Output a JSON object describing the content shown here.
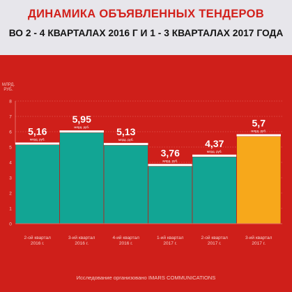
{
  "header": {
    "title_line1": "ДИНАМИКА ОБЪЯВЛЕННЫХ ТЕНДЕРОВ",
    "title_line2": "ВО 2 - 4 КВАРТАЛАХ 2016 Г И 1 - 3 КВАРТАЛАХ 2017 ГОДА"
  },
  "footer": {
    "text": "Исследование организовано IMARS COMMUNICATIONS"
  },
  "colors": {
    "background": "#cf1f1a",
    "header_bg": "#e7e6eb",
    "bar_teal": "#12a594",
    "bar_highlight": "#f7a81b",
    "bar_top_line": "#ffffff"
  },
  "chart_data": {
    "type": "bar",
    "ylabel": "МЛРД. РУБ.",
    "ylim": [
      0,
      8
    ],
    "yticks": [
      "0",
      "1",
      "2",
      "3",
      "4",
      "5",
      "6",
      "7",
      "8"
    ],
    "grid": true,
    "categories": [
      [
        "2-ой квартал",
        "2016 г."
      ],
      [
        "3-ий квартал",
        "2016 г."
      ],
      [
        "4-ий квартал",
        "2016 г."
      ],
      [
        "1-ий квартал",
        "2017 г."
      ],
      [
        "2-ой квартал",
        "2017 г."
      ],
      [
        "3-ий квартал",
        "2017 г."
      ]
    ],
    "values": [
      5.16,
      5.95,
      5.13,
      3.76,
      4.37,
      5.7
    ],
    "value_labels": [
      "5,16",
      "5,95",
      "5,13",
      "3,76",
      "4,37",
      "5,7"
    ],
    "unit_label": "млрд. руб.",
    "highlight_index": 5
  }
}
